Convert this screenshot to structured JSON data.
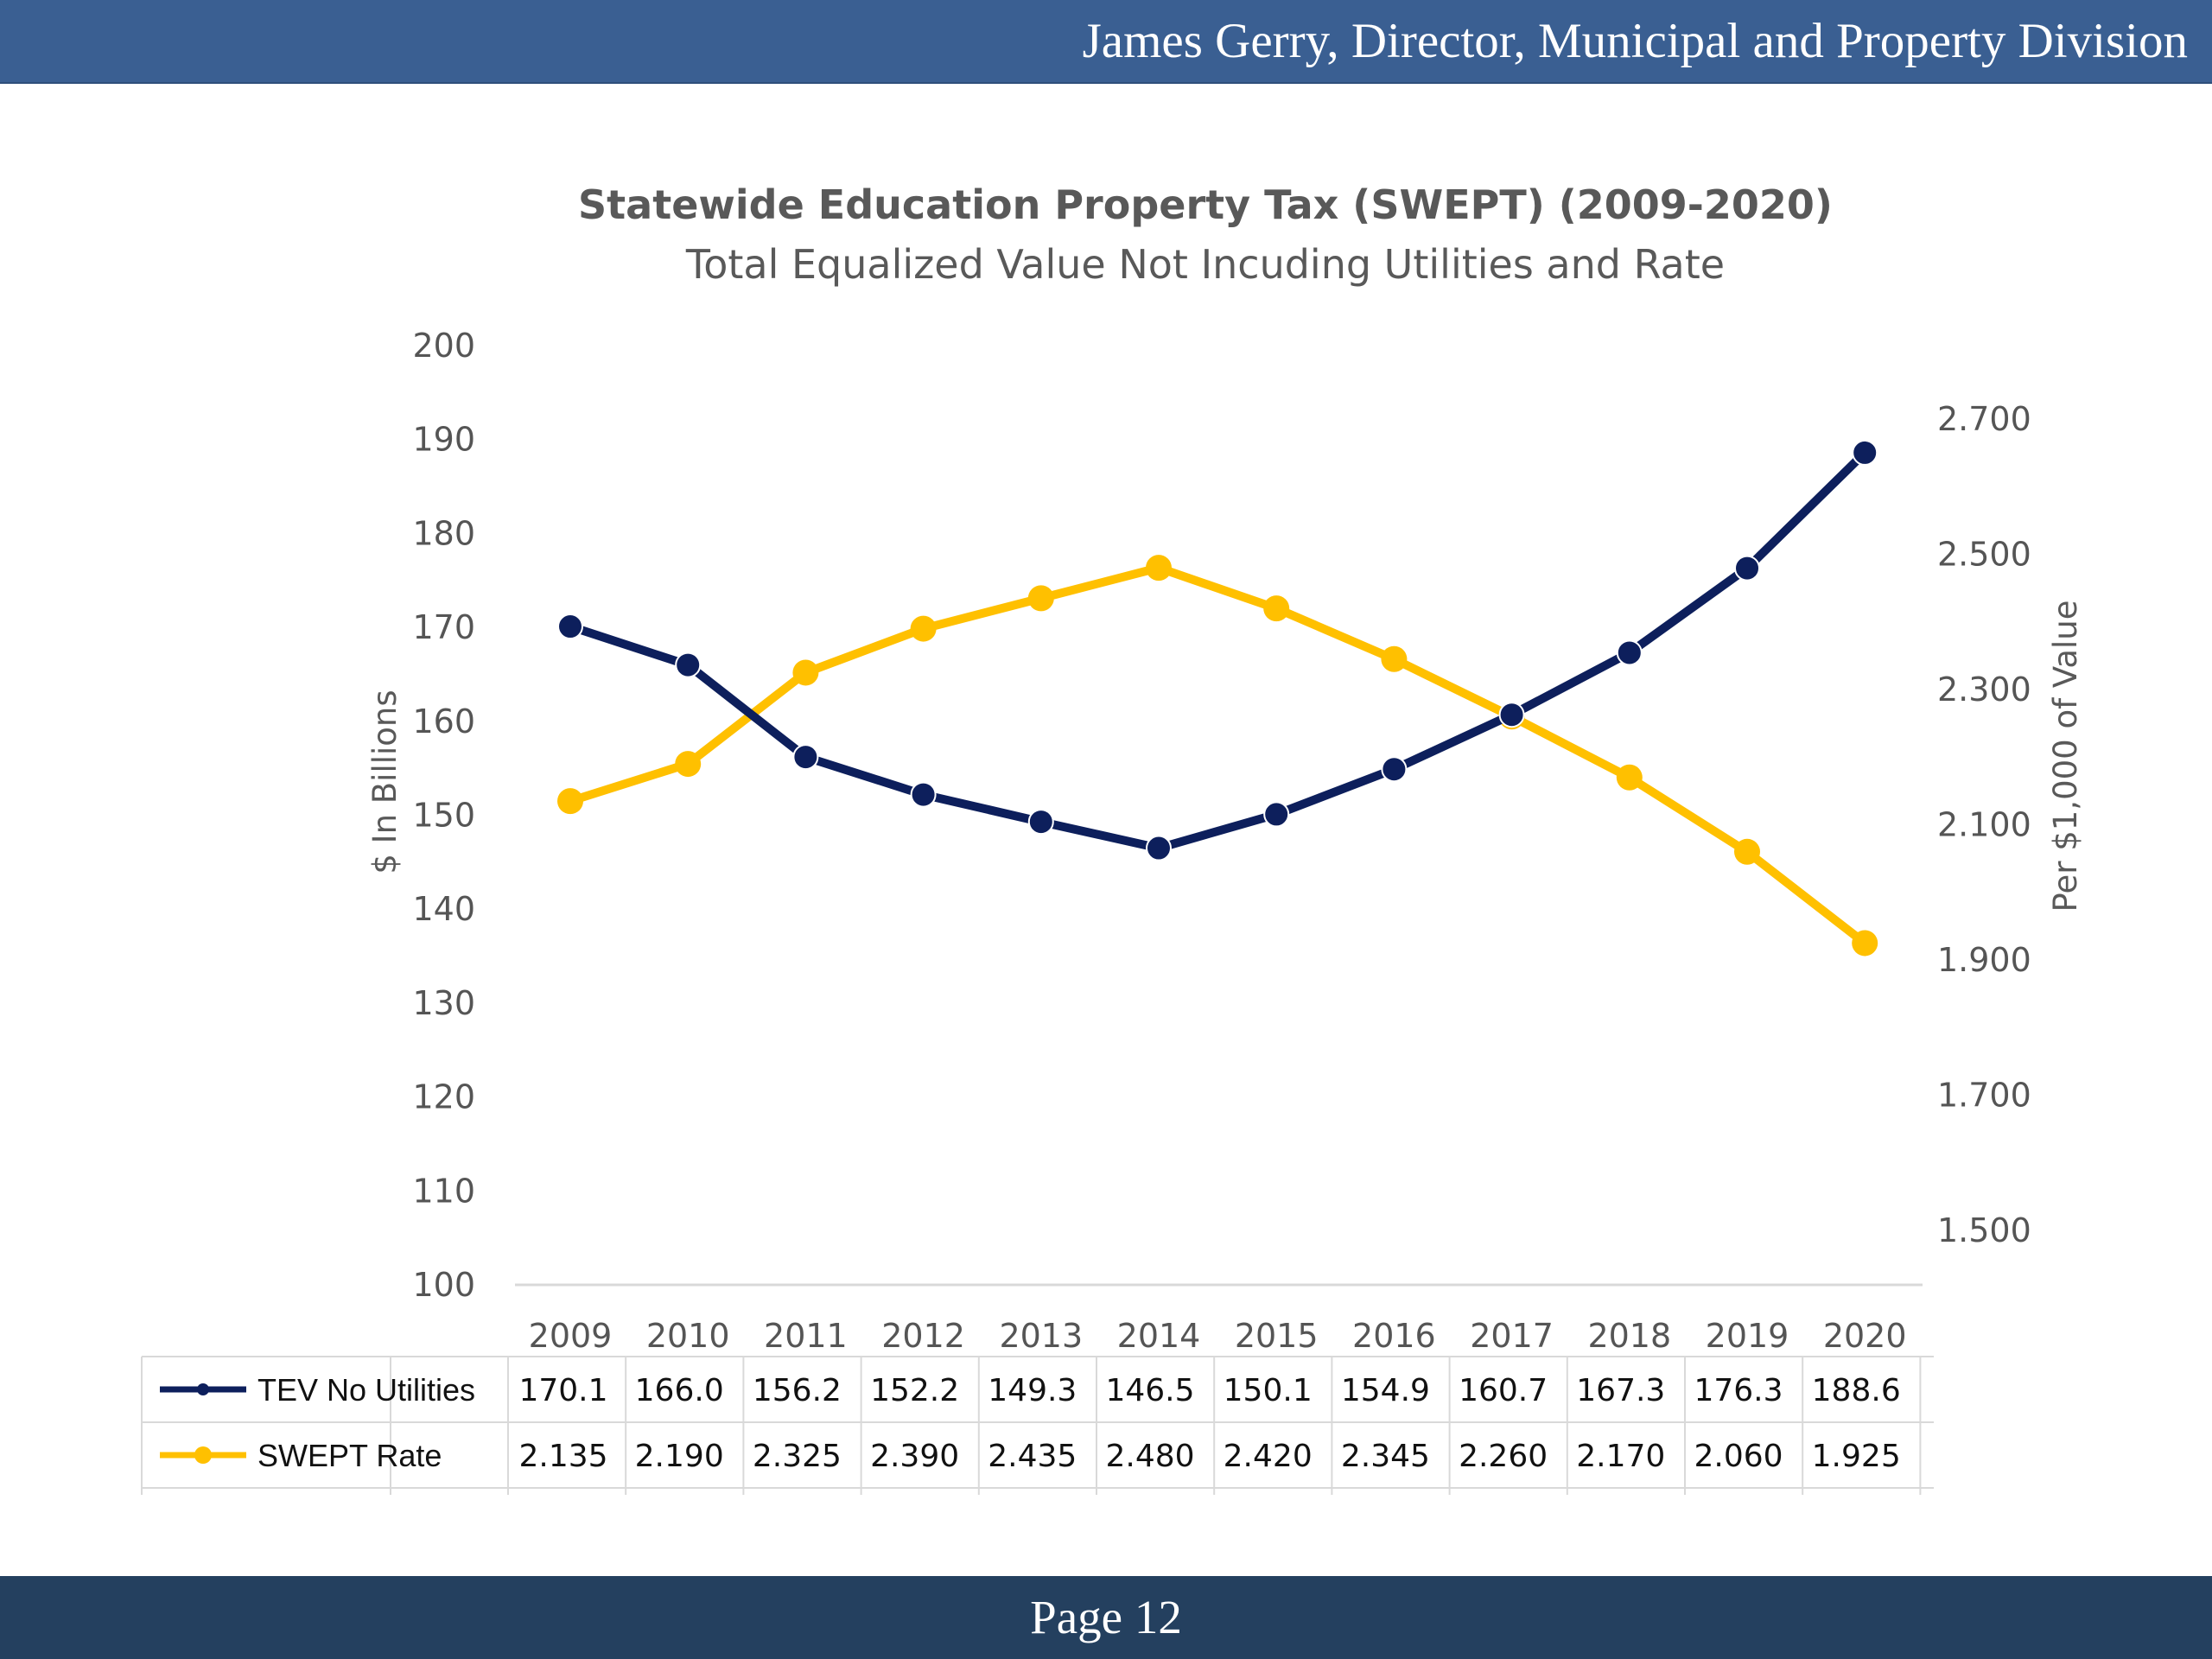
{
  "header": {
    "text": "James Gerry, Director, Municipal and Property Division"
  },
  "footer": {
    "page_label": "Page 12"
  },
  "chart_data": {
    "type": "line",
    "title": "Statewide Education Property Tax (SWEPT) (2009-2020)",
    "subtitle": "Total Equalized Value Not Incuding Utilities and Rate",
    "x": [
      "2009",
      "2010",
      "2011",
      "2012",
      "2013",
      "2014",
      "2015",
      "2016",
      "2017",
      "2018",
      "2019",
      "2020"
    ],
    "ylabel": "$ In Billions",
    "y2label": "Per $1,000 of Value",
    "ylim": [
      100,
      200
    ],
    "y2lim": [
      1.4,
      2.8
    ],
    "yticks": [
      "100",
      "110",
      "120",
      "130",
      "140",
      "150",
      "160",
      "170",
      "180",
      "190",
      "200"
    ],
    "y2ticks": [
      "1.500",
      "1.700",
      "1.900",
      "2.100",
      "2.300",
      "2.500",
      "2.700"
    ],
    "grid": false,
    "legend": "data table below chart",
    "series": [
      {
        "name": "TEV No Utilities",
        "axis": "left",
        "color": "#0d1f5c",
        "values": [
          170.1,
          166.0,
          156.2,
          152.2,
          149.3,
          146.5,
          150.1,
          154.9,
          160.7,
          167.3,
          176.3,
          188.6
        ],
        "labels": [
          "170.1",
          "166.0",
          "156.2",
          "152.2",
          "149.3",
          "146.5",
          "150.1",
          "154.9",
          "160.7",
          "167.3",
          "176.3",
          "188.6"
        ]
      },
      {
        "name": "SWEPT Rate",
        "axis": "right",
        "color": "#ffc000",
        "values": [
          2.135,
          2.19,
          2.325,
          2.39,
          2.435,
          2.48,
          2.42,
          2.345,
          2.26,
          2.17,
          2.06,
          1.925
        ],
        "labels": [
          "2.135",
          "2.190",
          "2.325",
          "2.390",
          "2.435",
          "2.480",
          "2.420",
          "2.345",
          "2.260",
          "2.170",
          "2.060",
          "1.925"
        ]
      }
    ]
  }
}
